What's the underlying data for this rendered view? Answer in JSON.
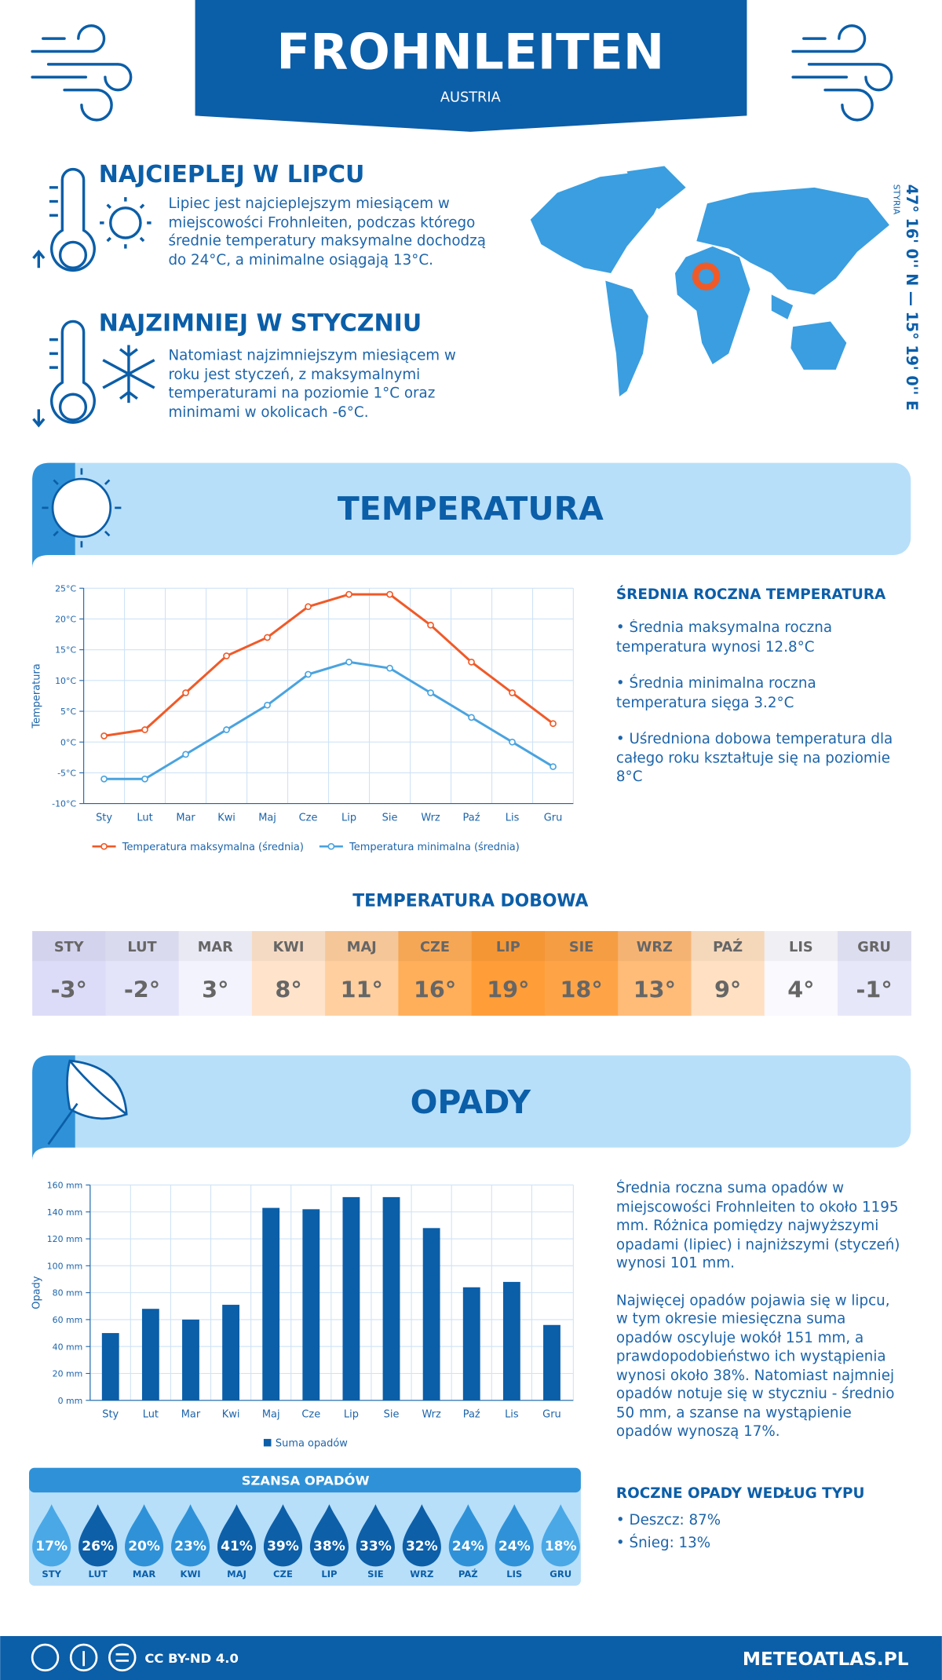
{
  "header": {
    "title": "FROHNLEITEN",
    "subtitle": "AUSTRIA"
  },
  "warmest": {
    "title": "NAJCIEPLEJ W LIPCU",
    "text": "Lipiec jest najcieplejszym miesiącem w miejscowości Frohnleiten, podczas którego średnie temperatury maksymalne dochodzą do 24°C, a minimalne osiągają 13°C."
  },
  "coldest": {
    "title": "NAJZIMNIEJ W STYCZNIU",
    "text": "Natomiast najzimniejszym miesiącem w roku jest styczeń, z maksymalnymi temperaturami na poziomie 1°C oraz minimami w okolicach -6°C."
  },
  "location": {
    "coordinates": "47° 16' 0'' N — 15° 19' 0'' E",
    "region": "STYRIA"
  },
  "temperature_section": {
    "title": "TEMPERATURA"
  },
  "chart_data": [
    {
      "type": "line",
      "y_label": "Temperatura",
      "categories": [
        "Sty",
        "Lut",
        "Mar",
        "Kwi",
        "Maj",
        "Cze",
        "Lip",
        "Sie",
        "Wrz",
        "Paź",
        "Lis",
        "Gru"
      ],
      "series": [
        {
          "name": "Temperatura maksymalna (średnia)",
          "color": "#f05a28",
          "values": [
            1,
            2,
            8,
            14,
            17,
            22,
            24,
            24,
            19,
            13,
            8,
            3
          ]
        },
        {
          "name": "Temperatura minimalna (średnia)",
          "color": "#4aa3df",
          "values": [
            -6,
            -6,
            -2,
            2,
            6,
            11,
            13,
            12,
            8,
            4,
            0,
            -4
          ]
        }
      ],
      "ylim": [
        -10,
        25
      ],
      "yticks": [
        {
          "value": -10,
          "label": "-10°C"
        },
        {
          "value": -5,
          "label": "-5°C"
        },
        {
          "value": 0,
          "label": "0°C"
        },
        {
          "value": 5,
          "label": "5°C"
        },
        {
          "value": 10,
          "label": "10°C"
        },
        {
          "value": 15,
          "label": "15°C"
        },
        {
          "value": 20,
          "label": "20°C"
        },
        {
          "value": 25,
          "label": "25°C"
        }
      ],
      "grid": true
    },
    {
      "type": "bar",
      "y_label": "Opady",
      "categories": [
        "Sty",
        "Lut",
        "Mar",
        "Kwi",
        "Maj",
        "Cze",
        "Lip",
        "Sie",
        "Wrz",
        "Paź",
        "Lis",
        "Gru"
      ],
      "series": [
        {
          "name": "Suma opadów",
          "color": "#0b5ea8",
          "values": [
            50,
            68,
            60,
            71,
            143,
            142,
            151,
            151,
            128,
            84,
            88,
            56
          ]
        }
      ],
      "ylim": [
        0,
        160
      ],
      "yticks": [
        {
          "value": 0,
          "label": "0 mm"
        },
        {
          "value": 20,
          "label": "20 mm"
        },
        {
          "value": 40,
          "label": "40 mm"
        },
        {
          "value": 60,
          "label": "60 mm"
        },
        {
          "value": 80,
          "label": "80 mm"
        },
        {
          "value": 100,
          "label": "100 mm"
        },
        {
          "value": 120,
          "label": "120 mm"
        },
        {
          "value": 140,
          "label": "140 mm"
        },
        {
          "value": 160,
          "label": "160 mm"
        }
      ],
      "grid": true
    }
  ],
  "annual_temperature": {
    "title": "ŚREDNIA ROCZNA TEMPERATURA",
    "items": [
      "• Średnia maksymalna roczna temperatura wynosi 12.8°C",
      "• Średnia minimalna roczna temperatura sięga 3.2°C",
      "• Uśredniona dobowa temperatura dla całego roku kształtuje się na poziomie 8°C"
    ]
  },
  "daily_temperature": {
    "title": "TEMPERATURA DOBOWA",
    "months": [
      "STY",
      "LUT",
      "MAR",
      "KWI",
      "MAJ",
      "CZE",
      "LIP",
      "SIE",
      "WRZ",
      "PAŹ",
      "LIS",
      "GRU"
    ],
    "values": [
      "-3°",
      "-2°",
      "3°",
      "8°",
      "11°",
      "16°",
      "19°",
      "18°",
      "13°",
      "9°",
      "4°",
      "-1°"
    ],
    "colors": [
      "#dcdcf8",
      "#e3e3f9",
      "#f3f3fd",
      "#ffe3cb",
      "#ffcf9f",
      "#ffae5a",
      "#ff9d38",
      "#ffa446",
      "#ffbb78",
      "#ffe0c2",
      "#f9f9fe",
      "#e7e7fa"
    ]
  },
  "precipitation_section": {
    "title": "OPADY"
  },
  "precipitation_text": [
    "Średnia roczna suma opadów w miejscowości Frohnleiten to około 1195 mm. Różnica pomiędzy najwyższymi opadami (lipiec) i najniższymi (styczeń) wynosi 101 mm.",
    "Najwięcej opadów pojawia się w lipcu, w tym okresie miesięczna suma opadów oscyluje wokół 151 mm, a prawdopodobieństwo ich wystąpienia wynosi około 38%. Natomiast najmniej opadów notuje się w styczniu - średnio 50 mm, a szanse na wystąpienie opadów wynoszą 17%."
  ],
  "precipitation_chance": {
    "title": "SZANSA OPADÓW",
    "months": [
      "STY",
      "LUT",
      "MAR",
      "KWI",
      "MAJ",
      "CZE",
      "LIP",
      "SIE",
      "WRZ",
      "PAŹ",
      "LIS",
      "GRU"
    ],
    "values": [
      17,
      26,
      20,
      23,
      41,
      39,
      38,
      33,
      32,
      24,
      24,
      18
    ],
    "value_labels": [
      "17%",
      "26%",
      "20%",
      "23%",
      "41%",
      "39%",
      "38%",
      "33%",
      "32%",
      "24%",
      "24%",
      "18%"
    ],
    "colors": [
      "#4aa8e6",
      "#0d5fa8",
      "#2f92d8",
      "#2f92d8",
      "#0d5fa8",
      "#0d5fa8",
      "#0d5fa8",
      "#0d5fa8",
      "#0d5fa8",
      "#2f92d8",
      "#2f92d8",
      "#4aa8e6"
    ]
  },
  "precipitation_types": {
    "title": "ROCZNE OPADY WEDŁUG TYPU",
    "items": [
      "• Deszcz: 87%",
      "• Śnieg: 13%"
    ]
  },
  "footer": {
    "license": "CC BY-ND 4.0",
    "site": "METEOATLAS.PL"
  }
}
